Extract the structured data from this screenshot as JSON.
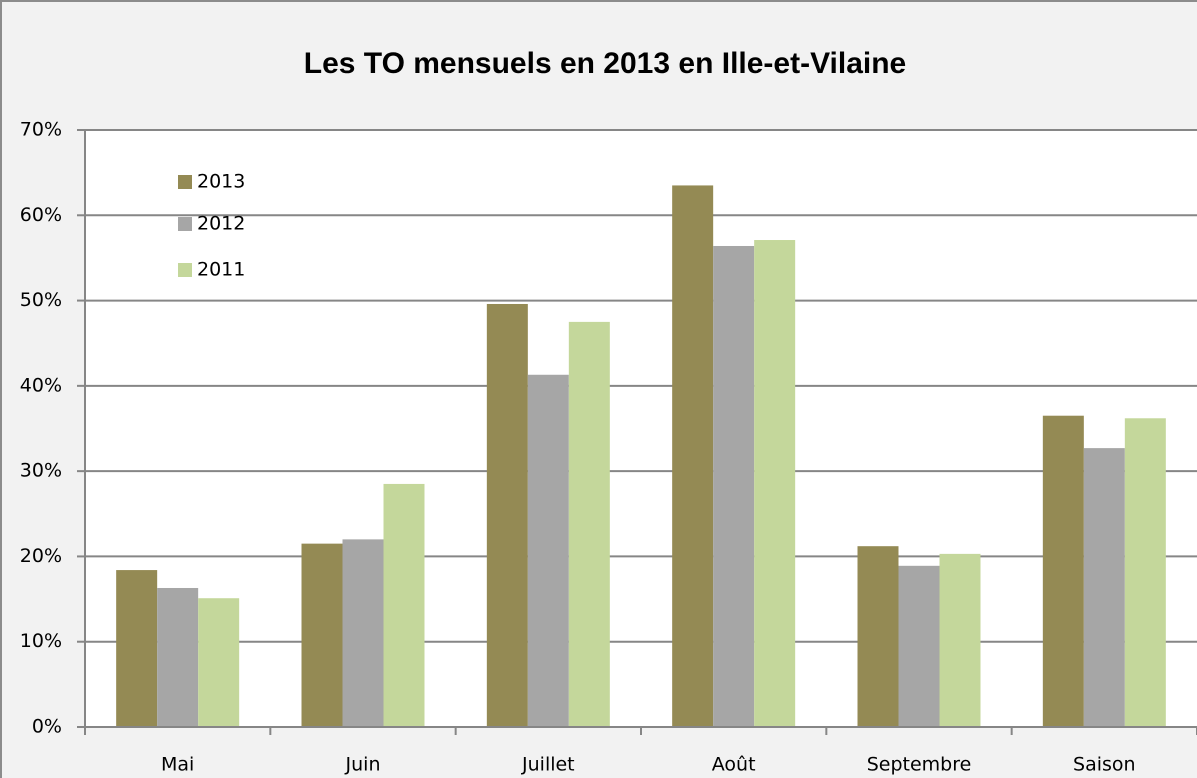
{
  "chart_data": {
    "type": "bar",
    "title": "Les TO mensuels en 2013 en Ille-et-Vilaine",
    "categories": [
      "Mai",
      "Juin",
      "Juillet",
      "Août",
      "Septembre",
      "Saison"
    ],
    "series": [
      {
        "name": "2013",
        "color": "#948a54",
        "values": [
          18.4,
          21.5,
          49.6,
          63.5,
          21.2,
          36.5
        ]
      },
      {
        "name": "2012",
        "color": "#a6a6a6",
        "values": [
          16.3,
          22.0,
          41.3,
          56.4,
          18.9,
          32.7
        ]
      },
      {
        "name": "2011",
        "color": "#c4d79b",
        "values": [
          15.1,
          28.5,
          47.5,
          57.1,
          20.3,
          36.2
        ]
      }
    ],
    "ylim": [
      0,
      70
    ],
    "yticks": [
      {
        "value": 0,
        "label": "0%"
      },
      {
        "value": 10,
        "label": "10%"
      },
      {
        "value": 20,
        "label": "20%"
      },
      {
        "value": 30,
        "label": "30%"
      },
      {
        "value": 40,
        "label": "40%"
      },
      {
        "value": 50,
        "label": "50%"
      },
      {
        "value": 60,
        "label": "60%"
      },
      {
        "value": 70,
        "label": "70%"
      }
    ],
    "grid": true,
    "legend": "top-left"
  }
}
